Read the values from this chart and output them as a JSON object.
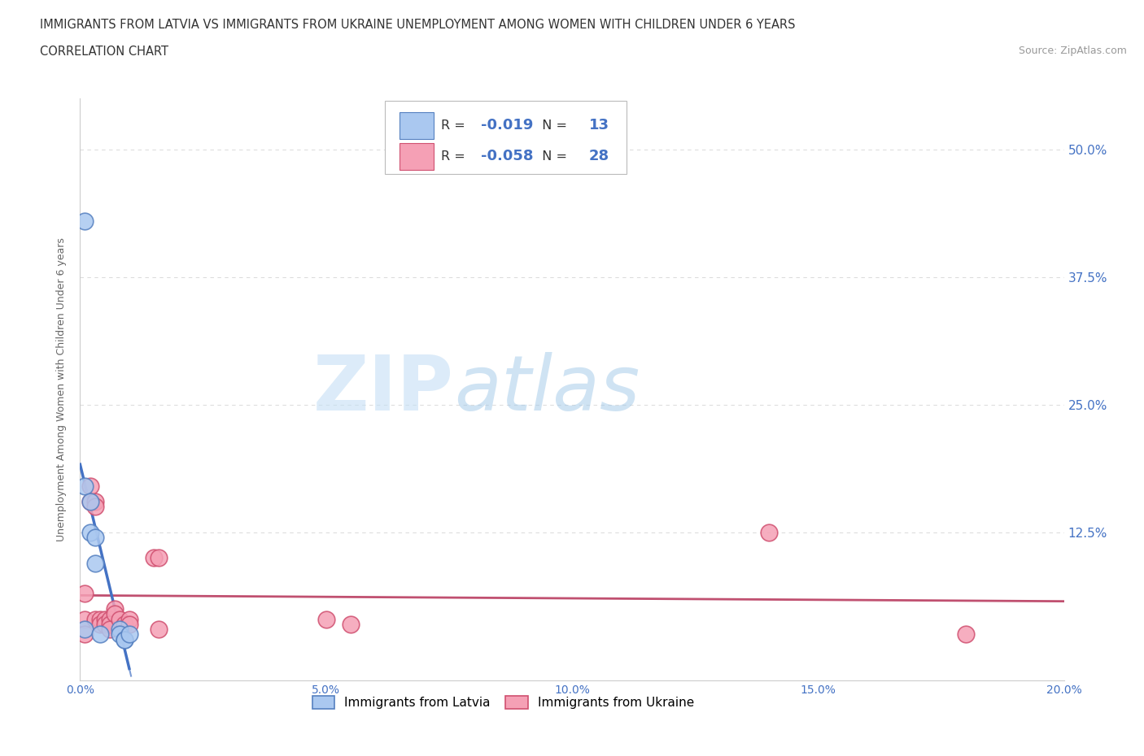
{
  "title_line1": "IMMIGRANTS FROM LATVIA VS IMMIGRANTS FROM UKRAINE UNEMPLOYMENT AMONG WOMEN WITH CHILDREN UNDER 6 YEARS",
  "title_line2": "CORRELATION CHART",
  "source": "Source: ZipAtlas.com",
  "ylabel": "Unemployment Among Women with Children Under 6 years",
  "xlim": [
    0.0,
    0.2
  ],
  "ylim": [
    -0.02,
    0.55
  ],
  "ytick_positions": [
    0.0,
    0.125,
    0.25,
    0.375,
    0.5
  ],
  "ytick_labels": [
    "",
    "12.5%",
    "25.0%",
    "37.5%",
    "50.0%"
  ],
  "latvia_x": [
    0.001,
    0.001,
    0.001,
    0.002,
    0.002,
    0.003,
    0.003,
    0.004,
    0.008,
    0.008,
    0.009,
    0.009,
    0.01
  ],
  "latvia_y": [
    0.43,
    0.17,
    0.03,
    0.155,
    0.125,
    0.12,
    0.095,
    0.025,
    0.03,
    0.025,
    0.02,
    0.02,
    0.025
  ],
  "ukraine_x": [
    0.001,
    0.001,
    0.001,
    0.002,
    0.002,
    0.003,
    0.003,
    0.003,
    0.004,
    0.004,
    0.005,
    0.005,
    0.006,
    0.006,
    0.006,
    0.007,
    0.007,
    0.008,
    0.009,
    0.01,
    0.01,
    0.015,
    0.016,
    0.016,
    0.05,
    0.055,
    0.14,
    0.18
  ],
  "ukraine_y": [
    0.065,
    0.04,
    0.025,
    0.17,
    0.155,
    0.155,
    0.15,
    0.04,
    0.04,
    0.035,
    0.04,
    0.035,
    0.04,
    0.035,
    0.03,
    0.05,
    0.045,
    0.04,
    0.035,
    0.04,
    0.035,
    0.1,
    0.1,
    0.03,
    0.04,
    0.035,
    0.125,
    0.025
  ],
  "latvia_color_fill": "#aac8f0",
  "latvia_color_edge": "#5580c0",
  "ukraine_color_fill": "#f5a0b5",
  "ukraine_color_edge": "#d05070",
  "trendline_latvia_color": "#4472c4",
  "trendline_ukraine_color": "#c05070",
  "R_latvia": -0.019,
  "N_latvia": 13,
  "R_ukraine": -0.058,
  "N_ukraine": 28,
  "legend_label_latvia": "Immigrants from Latvia",
  "legend_label_ukraine": "Immigrants from Ukraine",
  "watermark_zip": "ZIP",
  "watermark_atlas": "atlas",
  "background_color": "#ffffff",
  "grid_color": "#dddddd",
  "title_color": "#333333",
  "axis_label_color": "#666666",
  "blue_color": "#4472c4"
}
